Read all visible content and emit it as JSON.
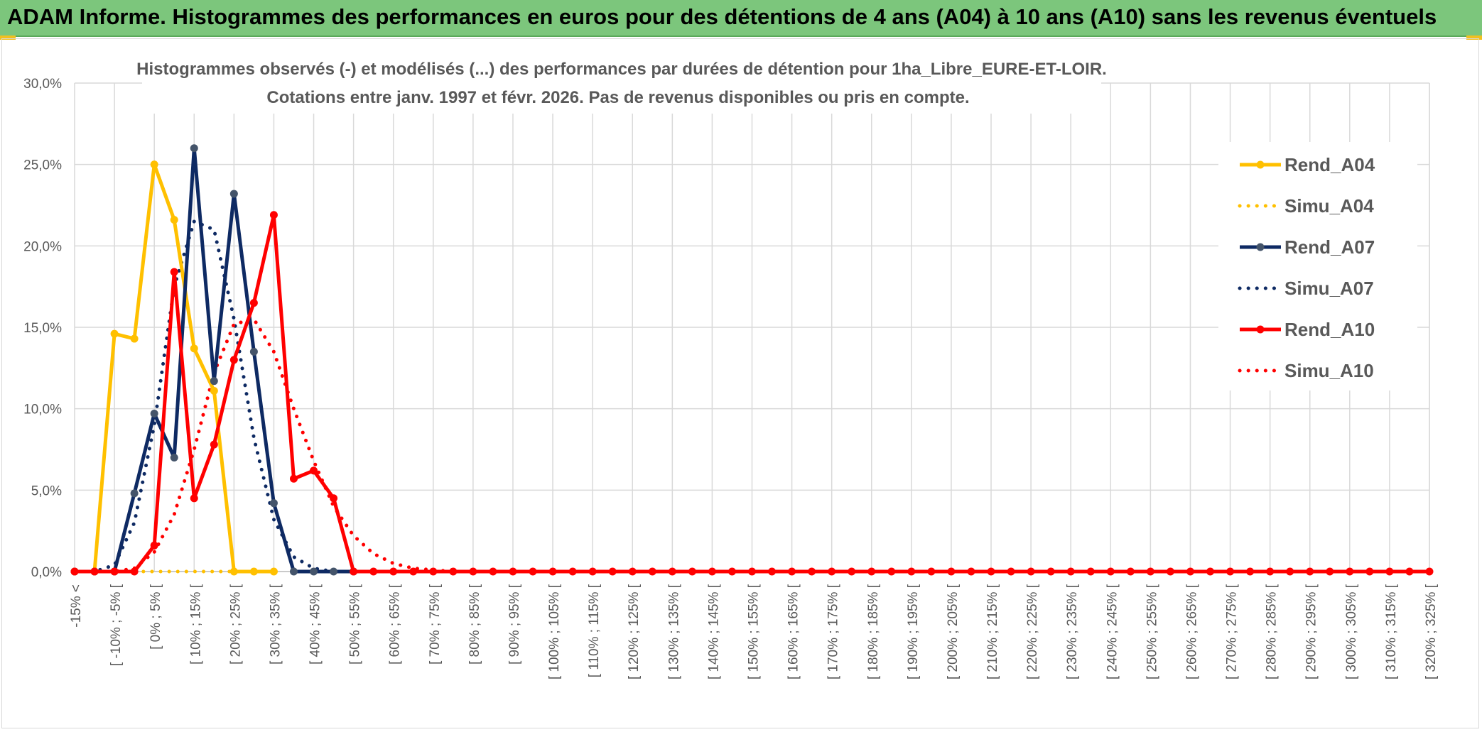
{
  "banner": {
    "title": "ADAM Informe. Histogrammes des performances en euros pour des détentions de 4 ans (A04) à 10 ans (A10) sans les revenus éventuels"
  },
  "colors": {
    "banner": "#7cc67c",
    "a04": "#ffc000",
    "a07": "#0e2a63",
    "a07_marker": "#44546a",
    "a10": "#ff0000",
    "grid": "#d9d9d9",
    "axis_text": "#595959"
  },
  "chart_data": {
    "type": "line",
    "title_line1": "Histogrammes observés (-) et modélisés (...) des performances par durées de détention pour 1ha_Libre_EURE-ET-LOIR.",
    "title_line2": "Cotations entre janv. 1997 et févr. 2026. Pas de revenus disponibles ou pris en compte.",
    "y_axis": {
      "min": 0,
      "max": 0.3,
      "ticks": [
        0,
        0.05,
        0.1,
        0.15,
        0.2,
        0.25,
        0.3
      ],
      "tick_labels": [
        "0,0%",
        "5,0%",
        "10,0%",
        "15,0%",
        "20,0%",
        "25,0%",
        "30,0%"
      ]
    },
    "grid": true,
    "legend_position": "right",
    "x_labels": [
      "-15% <",
      "[ -10% ; -5% [",
      "[ 0% ; 5% [",
      "[ 10% ; 15% [",
      "[ 20% ; 25% [",
      "[ 30% ; 35% [",
      "[ 40% ; 45% [",
      "[ 50% ; 55% [",
      "[ 60% ; 65% [",
      "[ 70% ; 75% [",
      "[ 80% ; 85% [",
      "[ 90% ; 95% [",
      "[ 100% ; 105% [",
      "[ 110% ; 115% [",
      "[ 120% ; 125% [",
      "[ 130% ; 135% [",
      "[ 140% ; 145% [",
      "[ 150% ; 155% [",
      "[ 160% ; 165% [",
      "[ 170% ; 175% [",
      "[ 180% ; 185% [",
      "[ 190% ; 195% [",
      "[ 200% ; 205% [",
      "[ 210% ; 215% [",
      "[ 220% ; 225% [",
      "[ 230% ; 235% [",
      "[ 240% ; 245% [",
      "[ 250% ; 255% [",
      "[ 260% ; 265% [",
      "[ 270% ; 275% [",
      "[ 280% ; 285% [",
      "[ 290% ; 295% [",
      "[ 300% ; 305% [",
      "[ 310% ; 315% [",
      "[ 320% ; 325% ["
    ],
    "x_range": [
      -15,
      325
    ],
    "bin_width": 5,
    "series": [
      {
        "name": "Rend_A04",
        "style": "solid",
        "color": "#ffc000",
        "marker_color": "#ffc000",
        "x": [
          -15,
          -10,
          -5,
          0,
          5,
          10,
          15,
          20,
          25,
          30,
          35
        ],
        "y": [
          0,
          0,
          0.146,
          0.143,
          0.25,
          0.216,
          0.137,
          0.111,
          0,
          0,
          0
        ]
      },
      {
        "name": "Simu_A04",
        "style": "dotted",
        "color": "#ffc000",
        "marker_color": "#ffc000",
        "x": [
          -15,
          -10,
          -5,
          0,
          5,
          10,
          15,
          20,
          25,
          30,
          35
        ],
        "y": [
          0,
          0,
          0,
          0,
          0,
          0,
          0,
          0,
          0,
          0,
          0
        ]
      },
      {
        "name": "Rend_A07",
        "style": "solid",
        "color": "#0e2a63",
        "marker_color": "#44546a",
        "x": [
          -15,
          -10,
          -5,
          0,
          5,
          10,
          15,
          20,
          25,
          30,
          35,
          40,
          45,
          50,
          55
        ],
        "y": [
          0,
          0,
          0,
          0.048,
          0.097,
          0.07,
          0.26,
          0.117,
          0.232,
          0.135,
          0.042,
          0,
          0,
          0,
          0
        ]
      },
      {
        "name": "Simu_A07",
        "style": "dotted",
        "color": "#0e2a63",
        "marker_color": "#0e2a63",
        "x": [
          -15,
          -10,
          -5,
          0,
          5,
          10,
          15,
          20,
          25,
          30,
          35,
          40,
          45,
          50,
          55
        ],
        "y": [
          0,
          0,
          0.004,
          0.03,
          0.09,
          0.175,
          0.215,
          0.21,
          0.155,
          0.082,
          0.032,
          0.009,
          0.002,
          0,
          0
        ]
      },
      {
        "name": "Rend_A10",
        "style": "solid",
        "color": "#ff0000",
        "marker_color": "#ff0000",
        "x": [
          -15,
          -10,
          -5,
          0,
          5,
          10,
          15,
          20,
          25,
          30,
          35,
          40,
          45,
          50,
          55,
          60,
          65,
          70,
          75,
          80,
          85,
          90,
          95,
          100,
          105,
          110,
          115,
          120,
          125,
          130,
          135,
          140,
          145,
          150,
          155,
          160,
          165,
          170,
          175,
          180,
          185,
          190,
          195,
          200,
          205,
          210,
          215,
          220,
          225,
          230,
          235,
          240,
          245,
          250,
          255,
          260,
          265,
          270,
          275,
          280,
          285,
          290,
          295,
          300,
          305,
          310,
          315,
          320,
          325
        ],
        "y": [
          0,
          0,
          0,
          0,
          0.016,
          0.184,
          0.045,
          0.078,
          0.13,
          0.165,
          0.219,
          0.057,
          0.062,
          0.045,
          0,
          0,
          0,
          0,
          0,
          0,
          0,
          0,
          0,
          0,
          0,
          0,
          0,
          0,
          0,
          0,
          0,
          0,
          0,
          0,
          0,
          0,
          0,
          0,
          0,
          0,
          0,
          0,
          0,
          0,
          0,
          0,
          0,
          0,
          0,
          0,
          0,
          0,
          0,
          0,
          0,
          0,
          0,
          0,
          0,
          0,
          0,
          0,
          0,
          0,
          0,
          0,
          0,
          0,
          0
        ]
      },
      {
        "name": "Simu_A10",
        "style": "dotted",
        "color": "#ff0000",
        "marker_color": "#ff0000",
        "x": [
          -15,
          -10,
          -5,
          0,
          5,
          10,
          15,
          20,
          25,
          30,
          35,
          40,
          45,
          50,
          55,
          60,
          65,
          70,
          75,
          80,
          85,
          90
        ],
        "y": [
          0,
          0,
          0,
          0.002,
          0.012,
          0.035,
          0.075,
          0.122,
          0.152,
          0.155,
          0.135,
          0.1,
          0.068,
          0.04,
          0.022,
          0.011,
          0.005,
          0.002,
          0.001,
          0,
          0,
          0
        ]
      }
    ]
  }
}
